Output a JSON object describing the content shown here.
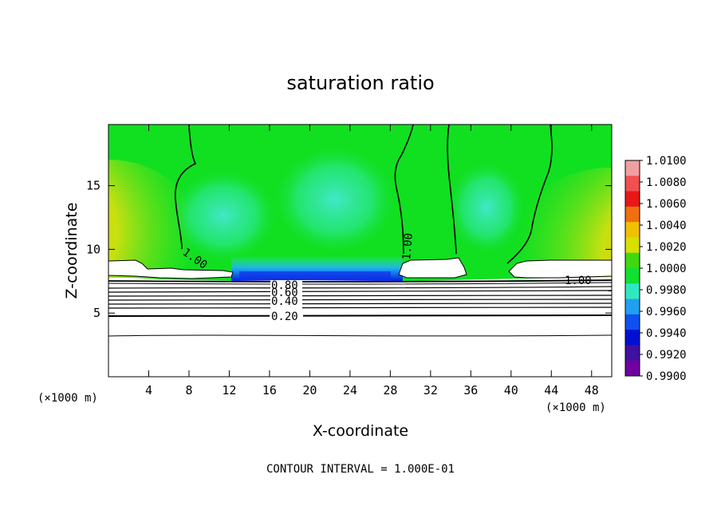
{
  "chart_data": {
    "type": "heatmap",
    "title": "saturation ratio",
    "xlabel": "X-coordinate",
    "ylabel": "Z-coordinate",
    "x_unit": "(×1000 m)",
    "z_unit": "(×1000 m)",
    "xlim": [
      0,
      50
    ],
    "ylim": [
      0,
      19.8
    ],
    "x_ticks": [
      "4",
      "8",
      "12",
      "16",
      "20",
      "24",
      "28",
      "32",
      "36",
      "40",
      "44",
      "48"
    ],
    "y_ticks": [
      "5",
      "10",
      "15"
    ],
    "colorbar": {
      "levels": [
        "1.0100",
        "1.0080",
        "1.0060",
        "1.0040",
        "1.0020",
        "1.0000",
        "0.9980",
        "0.9960",
        "0.9940",
        "0.9920",
        "0.9900"
      ],
      "colors": [
        "#f0a0a0",
        "#f05050",
        "#e81818",
        "#f07010",
        "#f0c000",
        "#d8e000",
        "#40d810",
        "#10e030",
        "#30e8c0",
        "#20a0f0",
        "#1050f0",
        "#0010d0",
        "#4010a0",
        "#7000a0"
      ]
    },
    "contour_labels": [
      "1.00",
      "1.00",
      "1.00",
      "0.80",
      "0.60",
      "0.40",
      "0.20"
    ],
    "contour_interval_text": "CONTOUR INTERVAL = 1.000E-01",
    "field_background": "#10e020"
  }
}
